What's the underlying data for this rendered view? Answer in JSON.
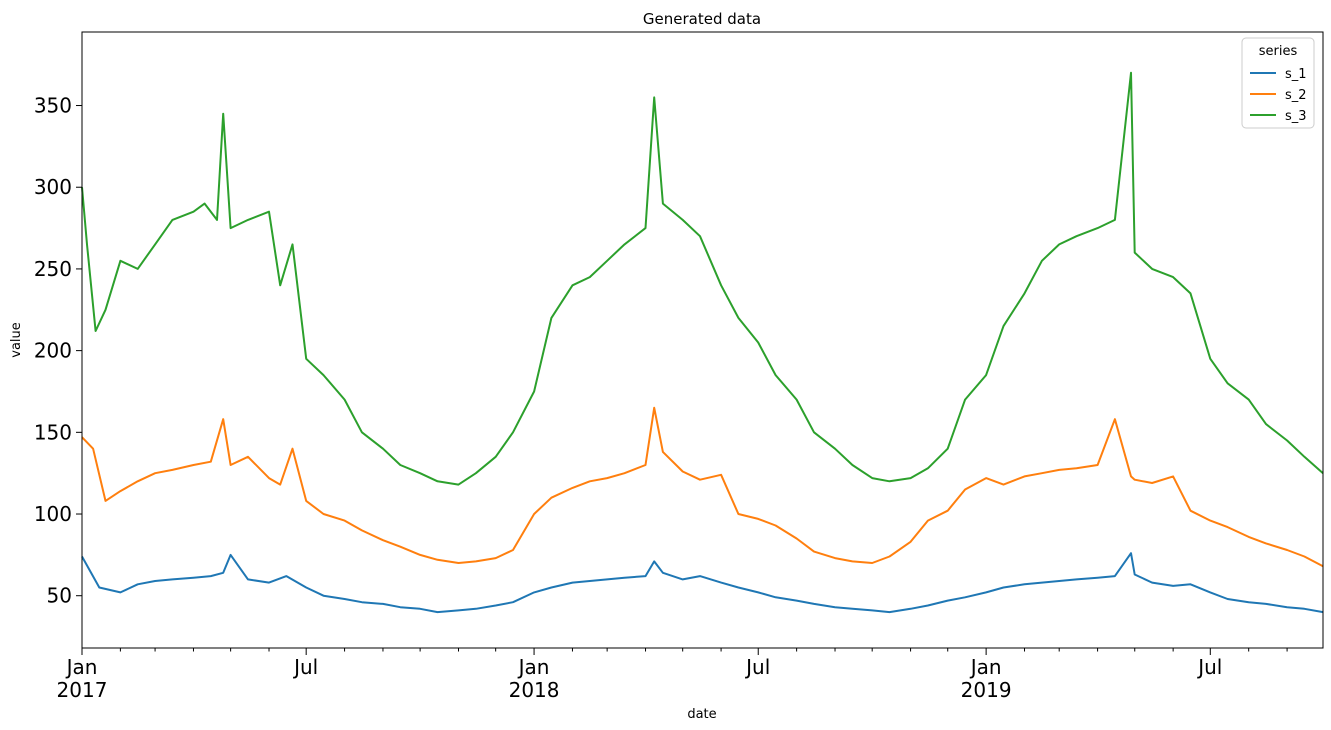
{
  "chart_data": {
    "type": "line",
    "title": "Generated data",
    "xlabel": "date",
    "ylabel": "value",
    "x_range": [
      "2017-01-01",
      "2019-09-30"
    ],
    "ylim": [
      18,
      395
    ],
    "grid": false,
    "legend": {
      "title": "series",
      "placement": "top-right"
    },
    "yticks": [
      50,
      100,
      150,
      200,
      250,
      300,
      350
    ],
    "xticks": [
      {
        "date": "2017-01-01",
        "line1": "Jan",
        "line2": "2017"
      },
      {
        "date": "2017-07-01",
        "line1": "Jul",
        "line2": ""
      },
      {
        "date": "2018-01-01",
        "line1": "Jan",
        "line2": "2018"
      },
      {
        "date": "2018-07-01",
        "line1": "Jul",
        "line2": ""
      },
      {
        "date": "2019-01-01",
        "line1": "Jan",
        "line2": "2019"
      },
      {
        "date": "2019-07-01",
        "line1": "Jul",
        "line2": ""
      }
    ],
    "series": [
      {
        "name": "s_1",
        "color": "#1f77b4",
        "x": [
          "2017-01-01",
          "2017-01-15",
          "2017-02-01",
          "2017-02-15",
          "2017-03-01",
          "2017-03-15",
          "2017-04-01",
          "2017-04-15",
          "2017-04-25",
          "2017-05-01",
          "2017-05-15",
          "2017-06-01",
          "2017-06-15",
          "2017-07-01",
          "2017-07-15",
          "2017-08-01",
          "2017-08-15",
          "2017-09-01",
          "2017-09-15",
          "2017-10-01",
          "2017-10-15",
          "2017-11-01",
          "2017-11-15",
          "2017-12-01",
          "2017-12-15",
          "2018-01-01",
          "2018-01-15",
          "2018-02-01",
          "2018-02-15",
          "2018-03-01",
          "2018-03-15",
          "2018-04-01",
          "2018-04-08",
          "2018-04-15",
          "2018-05-01",
          "2018-05-15",
          "2018-06-01",
          "2018-06-15",
          "2018-07-01",
          "2018-07-15",
          "2018-08-01",
          "2018-08-15",
          "2018-09-01",
          "2018-09-15",
          "2018-10-01",
          "2018-10-15",
          "2018-11-01",
          "2018-11-15",
          "2018-12-01",
          "2018-12-15",
          "2019-01-01",
          "2019-01-15",
          "2019-02-01",
          "2019-02-15",
          "2019-03-01",
          "2019-03-15",
          "2019-04-01",
          "2019-04-15",
          "2019-04-28",
          "2019-05-01",
          "2019-05-15",
          "2019-06-01",
          "2019-06-15",
          "2019-07-01",
          "2019-07-15",
          "2019-08-01",
          "2019-08-15",
          "2019-09-01",
          "2019-09-15",
          "2019-09-30"
        ],
        "values": [
          74,
          55,
          52,
          57,
          59,
          60,
          61,
          62,
          64,
          75,
          60,
          58,
          62,
          55,
          50,
          48,
          46,
          45,
          43,
          42,
          40,
          41,
          42,
          44,
          46,
          52,
          55,
          58,
          59,
          60,
          61,
          62,
          71,
          64,
          60,
          62,
          58,
          55,
          52,
          49,
          47,
          45,
          43,
          42,
          41,
          40,
          42,
          44,
          47,
          49,
          52,
          55,
          57,
          58,
          59,
          60,
          61,
          62,
          76,
          63,
          58,
          56,
          57,
          52,
          48,
          46,
          45,
          43,
          42,
          40
        ]
      },
      {
        "name": "s_2",
        "color": "#ff7f0e",
        "x": [
          "2017-01-01",
          "2017-01-10",
          "2017-01-20",
          "2017-02-01",
          "2017-02-15",
          "2017-03-01",
          "2017-03-15",
          "2017-04-01",
          "2017-04-15",
          "2017-04-25",
          "2017-05-01",
          "2017-05-15",
          "2017-06-01",
          "2017-06-10",
          "2017-06-20",
          "2017-07-01",
          "2017-07-15",
          "2017-08-01",
          "2017-08-15",
          "2017-09-01",
          "2017-09-15",
          "2017-10-01",
          "2017-10-15",
          "2017-11-01",
          "2017-11-15",
          "2017-12-01",
          "2017-12-15",
          "2018-01-01",
          "2018-01-15",
          "2018-02-01",
          "2018-02-15",
          "2018-03-01",
          "2018-03-15",
          "2018-04-01",
          "2018-04-08",
          "2018-04-15",
          "2018-05-01",
          "2018-05-15",
          "2018-06-01",
          "2018-06-15",
          "2018-07-01",
          "2018-07-15",
          "2018-08-01",
          "2018-08-15",
          "2018-09-01",
          "2018-09-15",
          "2018-10-01",
          "2018-10-15",
          "2018-11-01",
          "2018-11-15",
          "2018-12-01",
          "2018-12-15",
          "2019-01-01",
          "2019-01-15",
          "2019-02-01",
          "2019-02-15",
          "2019-03-01",
          "2019-03-15",
          "2019-04-01",
          "2019-04-15",
          "2019-04-28",
          "2019-05-01",
          "2019-05-15",
          "2019-06-01",
          "2019-06-15",
          "2019-07-01",
          "2019-07-15",
          "2019-08-01",
          "2019-08-15",
          "2019-09-01",
          "2019-09-15",
          "2019-09-30"
        ],
        "values": [
          147,
          140,
          108,
          114,
          120,
          125,
          127,
          130,
          132,
          158,
          130,
          135,
          122,
          118,
          140,
          108,
          100,
          96,
          90,
          84,
          80,
          75,
          72,
          70,
          71,
          73,
          78,
          100,
          110,
          116,
          120,
          122,
          125,
          130,
          165,
          138,
          126,
          121,
          124,
          100,
          97,
          93,
          85,
          77,
          73,
          71,
          70,
          74,
          83,
          96,
          102,
          115,
          122,
          118,
          123,
          125,
          127,
          128,
          130,
          158,
          123,
          121,
          119,
          123,
          102,
          96,
          92,
          86,
          82,
          78,
          74,
          68
        ]
      },
      {
        "name": "s_3",
        "color": "#2ca02c",
        "x": [
          "2017-01-01",
          "2017-01-05",
          "2017-01-12",
          "2017-01-20",
          "2017-02-01",
          "2017-02-15",
          "2017-03-01",
          "2017-03-15",
          "2017-04-01",
          "2017-04-10",
          "2017-04-20",
          "2017-04-25",
          "2017-05-01",
          "2017-05-15",
          "2017-06-01",
          "2017-06-10",
          "2017-06-20",
          "2017-07-01",
          "2017-07-15",
          "2017-08-01",
          "2017-08-15",
          "2017-09-01",
          "2017-09-15",
          "2017-10-01",
          "2017-10-15",
          "2017-11-01",
          "2017-11-15",
          "2017-12-01",
          "2017-12-15",
          "2018-01-01",
          "2018-01-15",
          "2018-02-01",
          "2018-02-15",
          "2018-03-01",
          "2018-03-15",
          "2018-04-01",
          "2018-04-08",
          "2018-04-15",
          "2018-05-01",
          "2018-05-15",
          "2018-06-01",
          "2018-06-15",
          "2018-07-01",
          "2018-07-15",
          "2018-08-01",
          "2018-08-15",
          "2018-09-01",
          "2018-09-15",
          "2018-10-01",
          "2018-10-15",
          "2018-11-01",
          "2018-11-15",
          "2018-12-01",
          "2018-12-15",
          "2019-01-01",
          "2019-01-15",
          "2019-02-01",
          "2019-02-15",
          "2019-03-01",
          "2019-03-15",
          "2019-04-01",
          "2019-04-15",
          "2019-04-28",
          "2019-05-01",
          "2019-05-15",
          "2019-06-01",
          "2019-06-15",
          "2019-07-01",
          "2019-07-15",
          "2019-08-01",
          "2019-08-15",
          "2019-09-01",
          "2019-09-15",
          "2019-09-30"
        ],
        "values": [
          300,
          265,
          212,
          225,
          255,
          250,
          265,
          280,
          285,
          290,
          280,
          345,
          275,
          280,
          285,
          240,
          265,
          195,
          185,
          170,
          150,
          140,
          130,
          125,
          120,
          118,
          125,
          135,
          150,
          175,
          220,
          240,
          245,
          255,
          265,
          275,
          355,
          290,
          280,
          270,
          240,
          220,
          205,
          185,
          170,
          150,
          140,
          130,
          122,
          120,
          122,
          128,
          140,
          170,
          185,
          215,
          235,
          255,
          265,
          270,
          275,
          280,
          370,
          260,
          250,
          245,
          235,
          195,
          180,
          170,
          155,
          145,
          135,
          125
        ]
      }
    ]
  }
}
